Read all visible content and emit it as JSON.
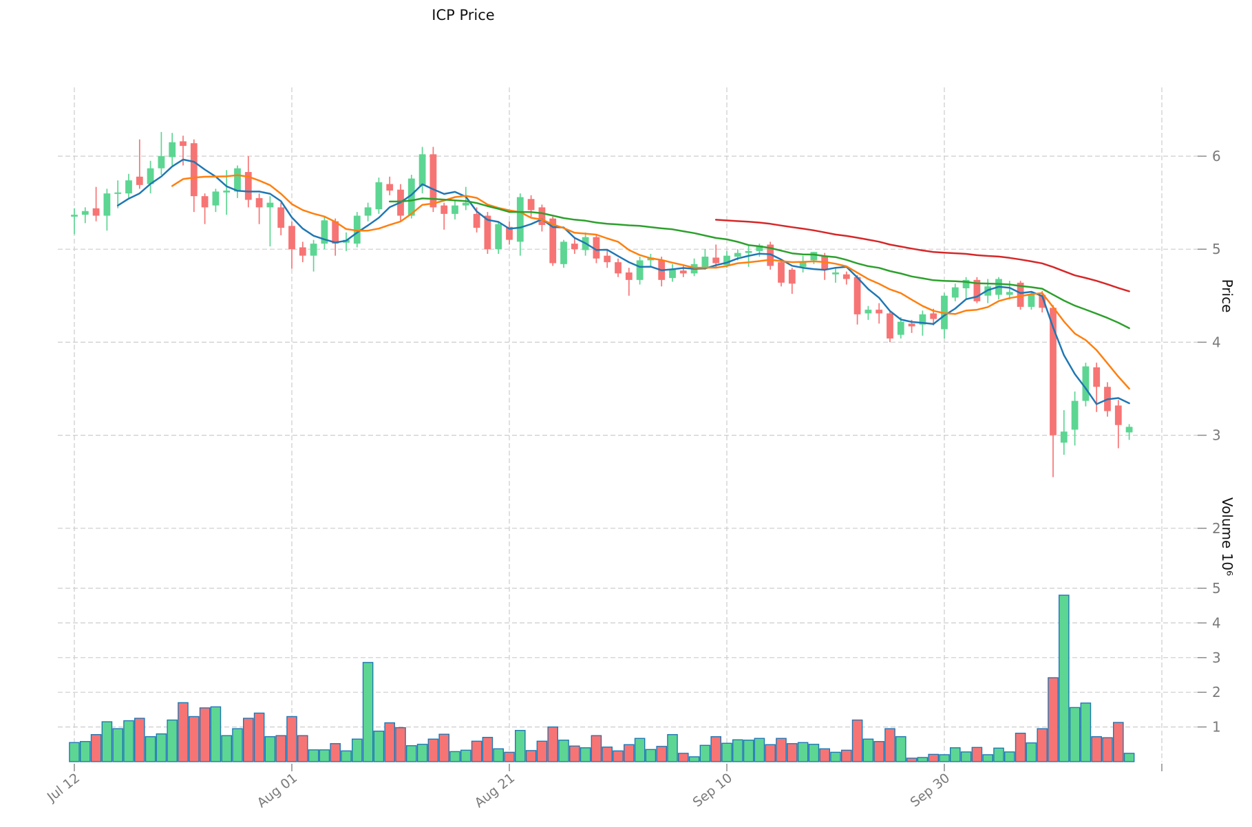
{
  "title": "ICP Price",
  "axes": {
    "price_label": "Price",
    "volume_label": "Volume  10⁶",
    "price_ticks": [
      6,
      5,
      4,
      3,
      2
    ],
    "volume_ticks": [
      5,
      4,
      3,
      2,
      1
    ],
    "x_ticks": [
      {
        "index": 0,
        "label": "Jul 12"
      },
      {
        "index": 20,
        "label": "Aug 01"
      },
      {
        "index": 40,
        "label": "Aug 21"
      },
      {
        "index": 60,
        "label": "Sep 10"
      },
      {
        "index": 80,
        "label": "Sep 30"
      },
      {
        "index": 100,
        "label": ""
      }
    ]
  },
  "colors": {
    "up": "#5CD692",
    "down": "#F77474",
    "volume_edge": "#1f77b4",
    "grid": "#cccccc",
    "tick_text": "#7a7a7a",
    "ma5": "#1f77b4",
    "ma10": "#ff7f0e",
    "ma30": "#2ca02c",
    "ma60": "#d62728"
  },
  "chart_data": {
    "type": "candlestick+volume",
    "title": "ICP Price",
    "ylabel_price": "Price",
    "ylabel_volume": "Volume 10^6",
    "price_axis_range": [
      2,
      6.5
    ],
    "volume_axis_range_millions": [
      0,
      5.2
    ],
    "grid": true,
    "moving_averages": [
      {
        "window": 5,
        "name": "MA5",
        "color": "#1f77b4"
      },
      {
        "window": 10,
        "name": "MA10",
        "color": "#ff7f0e"
      },
      {
        "window": 30,
        "name": "MA30",
        "color": "#2ca02c"
      },
      {
        "window": 60,
        "name": "MA60",
        "color": "#d62728"
      }
    ],
    "dates": [
      "Jul 12",
      "Jul 13",
      "Jul 14",
      "Jul 15",
      "Jul 16",
      "Jul 17",
      "Jul 18",
      "Jul 19",
      "Jul 20",
      "Jul 21",
      "Jul 22",
      "Jul 23",
      "Jul 24",
      "Jul 25",
      "Jul 26",
      "Jul 27",
      "Jul 28",
      "Jul 29",
      "Jul 30",
      "Jul 31",
      "Aug 01",
      "Aug 02",
      "Aug 03",
      "Aug 04",
      "Aug 05",
      "Aug 06",
      "Aug 07",
      "Aug 08",
      "Aug 09",
      "Aug 10",
      "Aug 11",
      "Aug 12",
      "Aug 13",
      "Aug 14",
      "Aug 15",
      "Aug 16",
      "Aug 17",
      "Aug 18",
      "Aug 19",
      "Aug 20",
      "Aug 21",
      "Aug 22",
      "Aug 23",
      "Aug 24",
      "Aug 25",
      "Aug 26",
      "Aug 27",
      "Aug 28",
      "Aug 29",
      "Aug 30",
      "Aug 31",
      "Sep 01",
      "Sep 02",
      "Sep 03",
      "Sep 04",
      "Sep 05",
      "Sep 06",
      "Sep 07",
      "Sep 08",
      "Sep 09",
      "Sep 10",
      "Sep 11",
      "Sep 12",
      "Sep 13",
      "Sep 14",
      "Sep 15",
      "Sep 16",
      "Sep 17",
      "Sep 18",
      "Sep 19",
      "Sep 20",
      "Sep 21",
      "Sep 22",
      "Sep 23",
      "Sep 24",
      "Sep 25",
      "Sep 26",
      "Sep 27",
      "Sep 28",
      "Sep 29",
      "Sep 30",
      "Oct 01",
      "Oct 02",
      "Oct 03",
      "Oct 04",
      "Oct 05",
      "Oct 06",
      "Oct 07",
      "Oct 08",
      "Oct 09",
      "Oct 10",
      "Oct 11",
      "Oct 12",
      "Oct 13",
      "Oct 14",
      "Oct 15",
      "Oct 16",
      "Oct 17"
    ],
    "open": [
      5.35,
      5.37,
      5.44,
      5.36,
      5.6,
      5.6,
      5.78,
      5.7,
      5.87,
      5.99,
      6.16,
      6.14,
      5.57,
      5.47,
      5.61,
      5.62,
      5.83,
      5.55,
      5.45,
      5.45,
      5.25,
      5.02,
      4.93,
      5.06,
      5.3,
      5.07,
      5.06,
      5.36,
      5.43,
      5.7,
      5.64,
      5.36,
      5.68,
      6.02,
      5.47,
      5.38,
      5.47,
      5.38,
      5.36,
      5.0,
      5.24,
      5.08,
      5.54,
      5.45,
      5.33,
      4.84,
      5.06,
      4.99,
      5.13,
      4.93,
      4.86,
      4.75,
      4.67,
      4.88,
      4.88,
      4.69,
      4.77,
      4.74,
      4.81,
      4.91,
      4.83,
      4.92,
      4.96,
      4.98,
      5.05,
      4.86,
      4.78,
      4.81,
      4.88,
      4.93,
      4.73,
      4.73,
      4.7,
      4.31,
      4.35,
      4.31,
      4.08,
      4.2,
      4.19,
      4.31,
      4.14,
      4.48,
      4.58,
      4.67,
      4.5,
      4.51,
      4.51,
      4.64,
      4.38,
      4.51,
      4.37,
      2.92,
      3.06,
      3.37,
      3.73,
      3.52,
      3.32,
      3.03
    ],
    "high": [
      5.44,
      5.45,
      5.67,
      5.65,
      5.74,
      5.81,
      6.18,
      5.95,
      6.26,
      6.25,
      6.22,
      6.18,
      5.6,
      5.65,
      5.85,
      5.9,
      6.0,
      5.6,
      5.57,
      5.5,
      5.3,
      5.08,
      5.1,
      5.35,
      5.33,
      5.18,
      5.4,
      5.5,
      5.77,
      5.78,
      5.7,
      5.8,
      6.1,
      6.1,
      5.5,
      5.52,
      5.67,
      5.45,
      5.4,
      5.3,
      5.3,
      5.6,
      5.58,
      5.48,
      5.35,
      5.1,
      5.12,
      5.18,
      5.15,
      5.0,
      4.9,
      4.8,
      4.92,
      4.95,
      4.92,
      4.84,
      4.82,
      4.9,
      5.0,
      5.05,
      4.98,
      5.0,
      5.04,
      5.06,
      5.08,
      4.88,
      4.8,
      4.93,
      4.97,
      4.96,
      4.8,
      4.76,
      4.72,
      4.39,
      4.42,
      4.33,
      4.27,
      4.24,
      4.34,
      4.36,
      4.53,
      4.63,
      4.7,
      4.7,
      4.68,
      4.7,
      4.66,
      4.66,
      4.55,
      4.55,
      4.4,
      3.27,
      3.47,
      3.78,
      3.78,
      3.57,
      3.38,
      3.12
    ],
    "low": [
      5.16,
      5.28,
      5.3,
      5.2,
      5.44,
      5.55,
      5.65,
      5.6,
      5.8,
      5.9,
      5.9,
      5.4,
      5.27,
      5.4,
      5.37,
      5.55,
      5.45,
      5.27,
      5.03,
      5.15,
      4.79,
      4.86,
      4.76,
      5.0,
      4.93,
      4.98,
      5.02,
      5.3,
      5.38,
      5.58,
      5.3,
      5.33,
      5.6,
      5.4,
      5.21,
      5.32,
      5.42,
      5.18,
      4.95,
      4.95,
      5.05,
      4.93,
      5.35,
      5.19,
      4.82,
      4.8,
      4.95,
      4.93,
      4.85,
      4.8,
      4.7,
      4.5,
      4.62,
      4.82,
      4.6,
      4.65,
      4.7,
      4.71,
      4.78,
      4.8,
      4.8,
      4.88,
      4.81,
      4.92,
      4.78,
      4.6,
      4.52,
      4.75,
      4.84,
      4.67,
      4.64,
      4.62,
      4.19,
      4.24,
      4.2,
      4.0,
      4.04,
      4.1,
      4.07,
      4.18,
      4.04,
      4.44,
      4.47,
      4.42,
      4.42,
      4.46,
      4.46,
      4.35,
      4.35,
      4.32,
      2.55,
      2.79,
      2.89,
      3.31,
      3.25,
      3.2,
      2.86,
      2.95
    ],
    "close": [
      5.37,
      5.41,
      5.36,
      5.6,
      5.61,
      5.74,
      5.69,
      5.87,
      6.0,
      6.15,
      6.11,
      5.57,
      5.45,
      5.62,
      5.63,
      5.87,
      5.53,
      5.45,
      5.5,
      5.23,
      5.0,
      4.93,
      5.06,
      5.31,
      5.06,
      5.1,
      5.36,
      5.45,
      5.72,
      5.63,
      5.36,
      5.76,
      6.02,
      5.45,
      5.38,
      5.47,
      5.5,
      5.23,
      5.0,
      5.27,
      5.1,
      5.56,
      5.42,
      5.26,
      4.85,
      5.08,
      5.0,
      5.13,
      4.9,
      4.86,
      4.74,
      4.67,
      4.88,
      4.91,
      4.67,
      4.79,
      4.74,
      4.84,
      4.92,
      4.85,
      4.93,
      4.96,
      4.98,
      5.04,
      4.82,
      4.64,
      4.63,
      4.87,
      4.97,
      4.78,
      4.75,
      4.68,
      4.3,
      4.35,
      4.31,
      4.04,
      4.22,
      4.17,
      4.3,
      4.25,
      4.5,
      4.59,
      4.67,
      4.44,
      4.6,
      4.68,
      4.54,
      4.38,
      4.51,
      4.37,
      3.0,
      3.04,
      3.37,
      3.74,
      3.52,
      3.26,
      3.11,
      3.09
    ],
    "volume_millions": [
      0.55,
      0.58,
      0.78,
      1.15,
      0.95,
      1.18,
      1.25,
      0.72,
      0.8,
      1.2,
      1.7,
      1.3,
      1.55,
      1.58,
      0.75,
      0.95,
      1.25,
      1.4,
      0.72,
      0.75,
      1.3,
      0.75,
      0.34,
      0.34,
      0.52,
      0.31,
      0.65,
      2.86,
      0.88,
      1.12,
      0.98,
      0.46,
      0.5,
      0.65,
      0.79,
      0.29,
      0.33,
      0.59,
      0.7,
      0.37,
      0.27,
      0.9,
      0.32,
      0.59,
      1.0,
      0.62,
      0.45,
      0.4,
      0.75,
      0.42,
      0.31,
      0.49,
      0.67,
      0.35,
      0.44,
      0.78,
      0.24,
      0.14,
      0.47,
      0.72,
      0.53,
      0.63,
      0.62,
      0.67,
      0.49,
      0.67,
      0.52,
      0.55,
      0.5,
      0.37,
      0.27,
      0.33,
      1.2,
      0.65,
      0.58,
      0.95,
      0.72,
      0.1,
      0.12,
      0.21,
      0.2,
      0.4,
      0.28,
      0.41,
      0.2,
      0.39,
      0.28,
      0.82,
      0.54,
      0.95,
      2.42,
      4.8,
      1.56,
      1.69,
      0.72,
      0.69,
      1.13,
      0.24
    ]
  }
}
